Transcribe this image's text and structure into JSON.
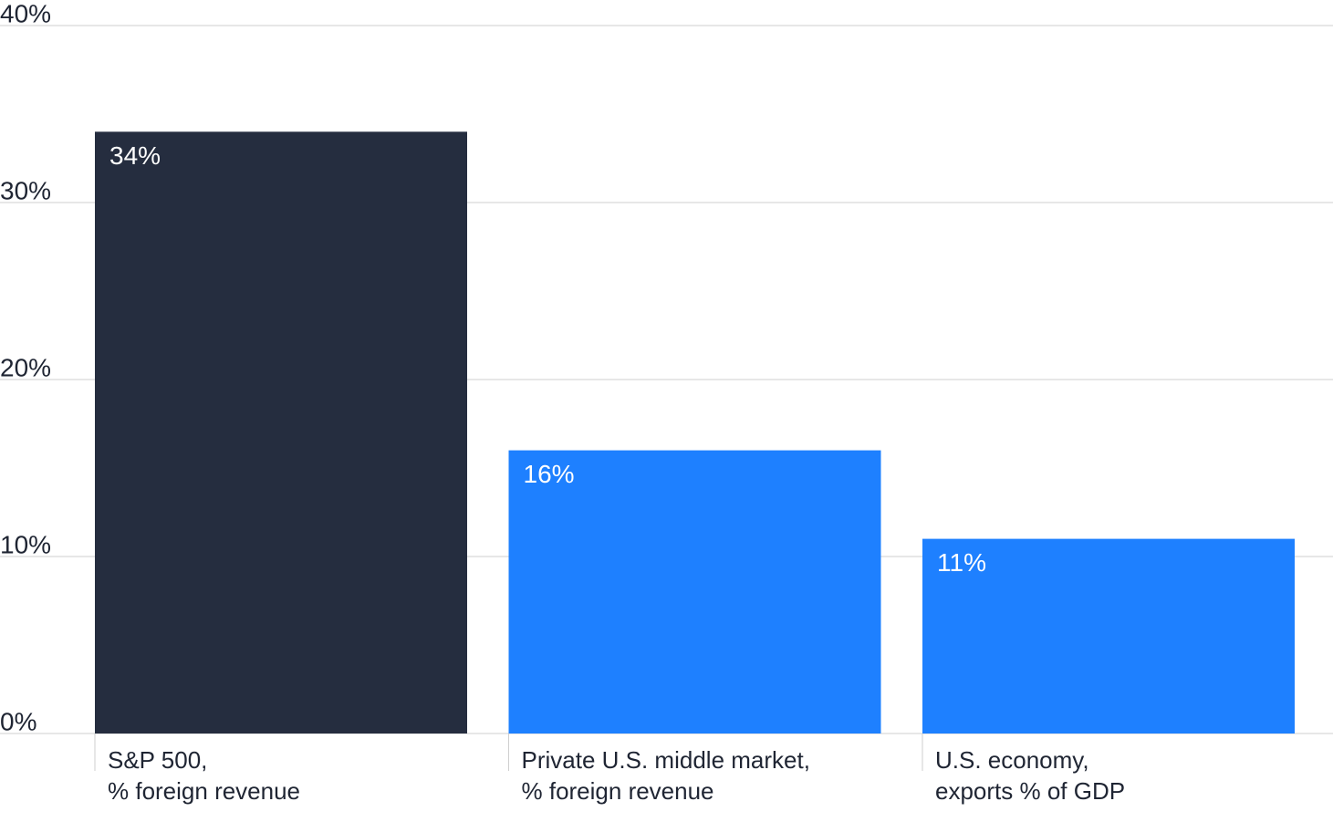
{
  "chart_data": {
    "type": "bar",
    "categories": [
      [
        "S&P 500,",
        "% foreign revenue"
      ],
      [
        "Private U.S. middle market,",
        "% foreign revenue"
      ],
      [
        "U.S. economy,",
        "exports % of GDP"
      ]
    ],
    "values": [
      34,
      16,
      11
    ],
    "value_labels": [
      "34%",
      "16%",
      "11%"
    ],
    "colors": [
      "#252d3f",
      "#1e80ff",
      "#1e80ff"
    ],
    "ylim": [
      0,
      40
    ],
    "yticks": [
      {
        "value": 0,
        "label": "0%"
      },
      {
        "value": 10,
        "label": "10%"
      },
      {
        "value": 20,
        "label": "20%"
      },
      {
        "value": 30,
        "label": "30%"
      },
      {
        "value": 40,
        "label": "40%"
      }
    ],
    "grid": true
  }
}
